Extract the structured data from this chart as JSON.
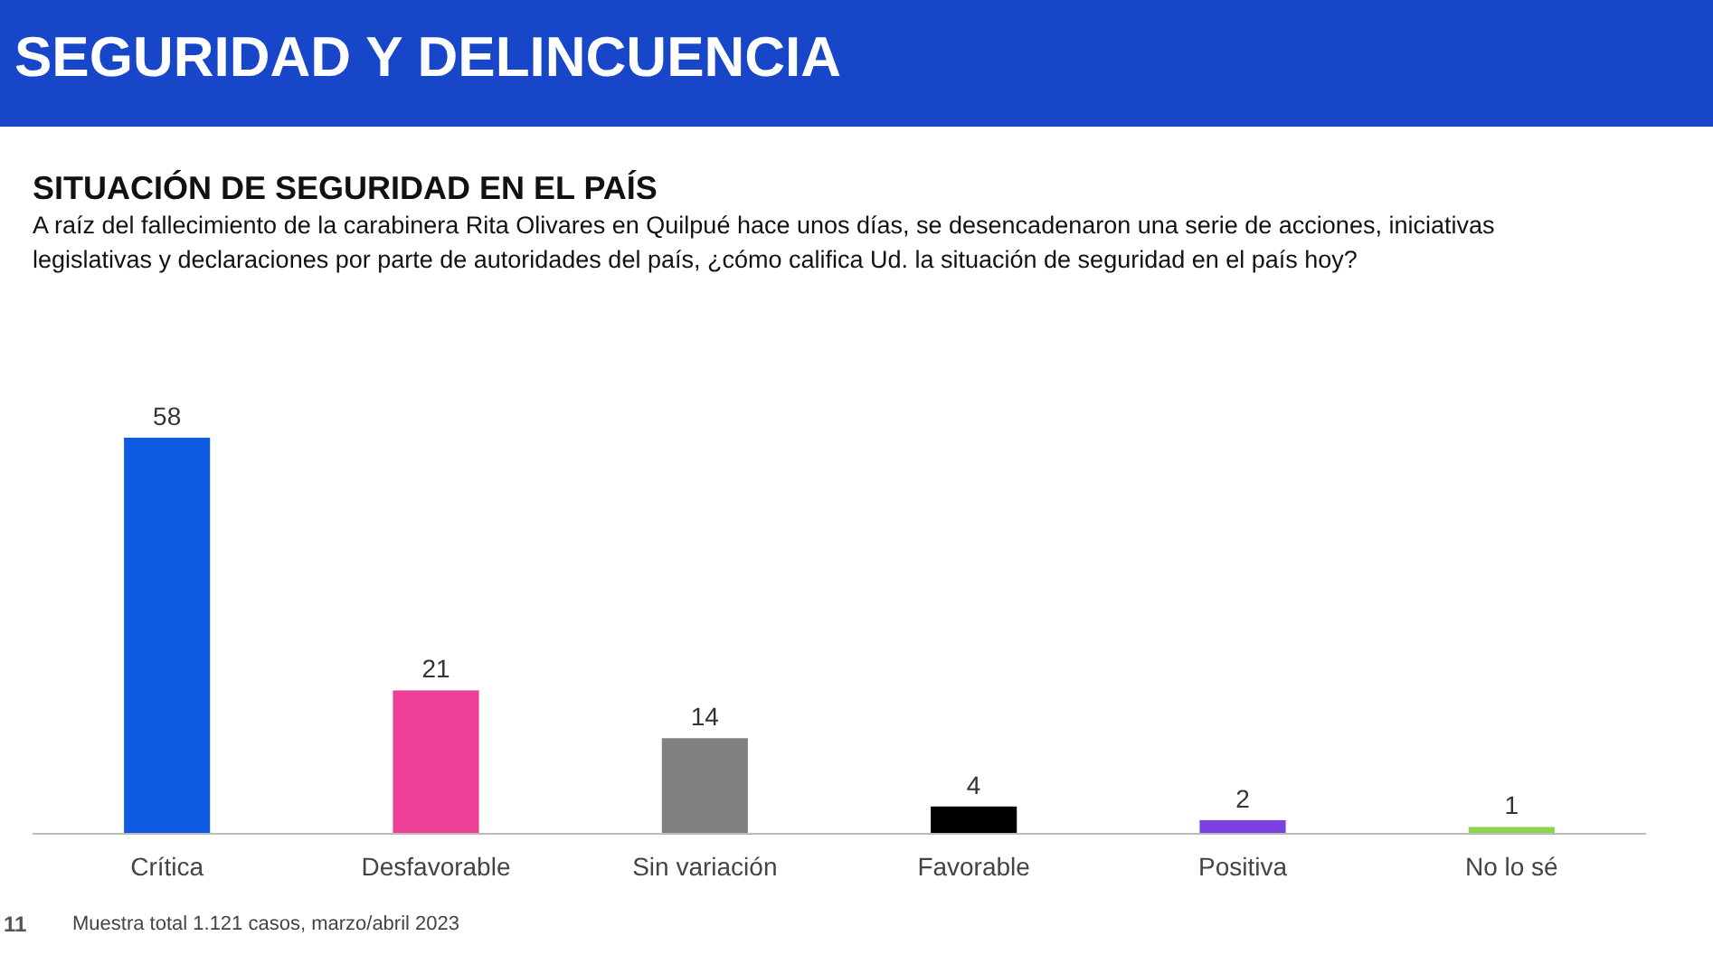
{
  "chart_data": {
    "type": "bar",
    "title": "SITUACIÓN DE SEGURIDAD EN EL PAÍS",
    "subtitle": "A raíz del fallecimiento de la carabinera Rita Olivares en Quilpué hace unos días, se desencadenaron una serie de acciones, iniciativas legislativas y declaraciones por parte de autoridades del país, ¿cómo califica Ud. la situación de seguridad en el país hoy?",
    "categories": [
      "Crítica",
      "Desfavorable",
      "Sin variación",
      "Favorable",
      "Positiva",
      "No lo sé"
    ],
    "values": [
      58,
      21,
      14,
      4,
      2,
      1
    ],
    "colors": [
      "#0f5be3",
      "#ec4197",
      "#808080",
      "#000000",
      "#7c3fe3",
      "#8fd450"
    ],
    "data_labels": true,
    "annotations": [
      "SEGURIDAD Y DELINCUENCIA",
      "11",
      "Muestra total 1.121 casos, marzo/abril 2023"
    ]
  }
}
